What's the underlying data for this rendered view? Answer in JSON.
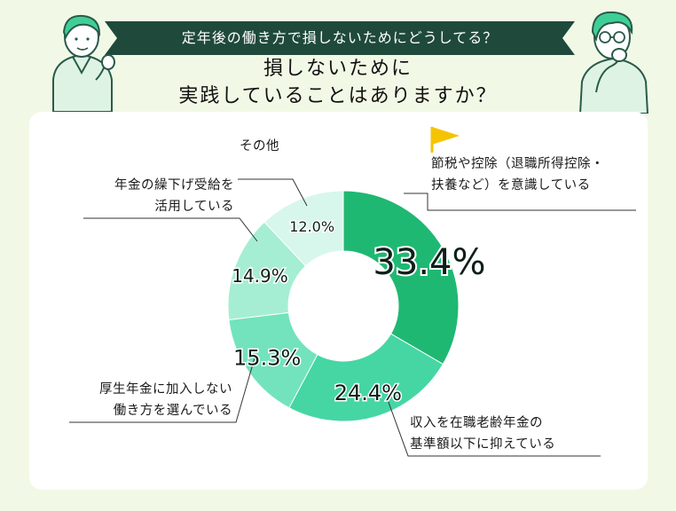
{
  "banner": {
    "text": "定年後の働き方で損しないためにどうしてる？"
  },
  "title": {
    "line1": "損しないために",
    "line2": "実践していることはありますか？"
  },
  "chart_data": {
    "type": "pie",
    "categories": [
      "節税や控除（退職所得控除・扶養など）を意識している",
      "収入を在職老齢年金の基準額以下に抑えている",
      "厚生年金に加入しない働き方を選んでいる",
      "年金の繰下げ受給を活用している",
      "その他"
    ],
    "values": [
      33.4,
      24.4,
      15.3,
      14.9,
      12.0
    ],
    "value_labels": [
      "33.4%",
      "24.4%",
      "15.3%",
      "14.9%",
      "12.0%"
    ],
    "colors": [
      "#1fb872",
      "#45d6a4",
      "#72e3bd",
      "#a5eed4",
      "#d7f7ec"
    ],
    "donut": true
  },
  "labels": {
    "cat1": {
      "line1": "節税や控除（退職所得控除・",
      "line2": "扶養など）を意識している"
    },
    "cat2": {
      "line1": "収入を在職老齢年金の",
      "line2": "基準額以下に抑えている"
    },
    "cat3": {
      "line1": "厚生年金に加入しない",
      "line2": "働き方を選んでいる"
    },
    "cat4": {
      "line1": "年金の繰下げ受給を",
      "line2": "活用している"
    },
    "cat5": {
      "line1": "その他"
    }
  },
  "colors": {
    "banner": "#1f4a3b",
    "flag": "#f5c400",
    "leader": "#333333",
    "background": "#f1f9e6"
  }
}
